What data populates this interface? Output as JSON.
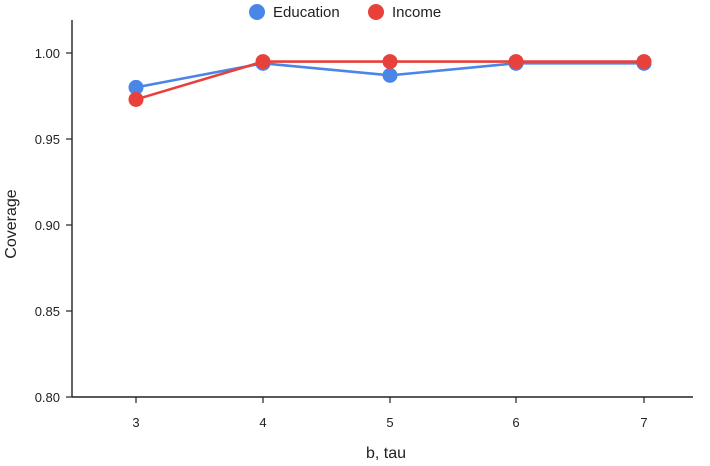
{
  "chart_data": {
    "type": "line",
    "title": "",
    "xlabel": "b, tau",
    "ylabel": "Coverage",
    "categories": [
      "3",
      "4",
      "5",
      "6",
      "7"
    ],
    "yticks": [
      "0.80",
      "0.85",
      "0.90",
      "0.95",
      "1.00"
    ],
    "ylim": [
      0.8,
      1.02
    ],
    "grid": false,
    "legend_position": "top-center",
    "series": [
      {
        "name": "Education",
        "color": "#4a86e8",
        "values": [
          0.98,
          0.994,
          0.987,
          0.994,
          0.994
        ]
      },
      {
        "name": "Income",
        "color": "#e8403b",
        "values": [
          0.973,
          0.995,
          0.995,
          0.995,
          0.995
        ]
      }
    ]
  }
}
